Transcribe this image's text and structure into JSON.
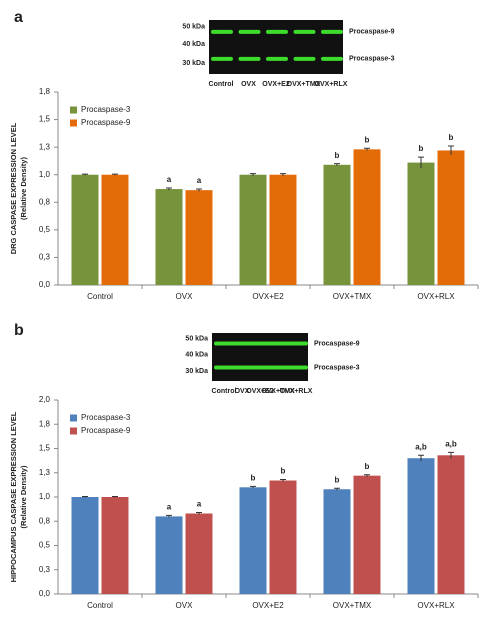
{
  "chart_data": [
    {
      "type": "bar",
      "panel_label": "a",
      "blot": {
        "markers": [
          "50 kDa",
          "40 kDa",
          "30 kDa"
        ],
        "bands": [
          "Procaspase-9",
          "Procaspase-3"
        ],
        "lanes": [
          "Control",
          "OVX",
          "OVX+E2",
          "OVX+TMX",
          "OVX+RLX"
        ]
      },
      "ylabel": [
        "DRG CASPASE EXPRESSION LEVEL",
        "(Relative Density)"
      ],
      "categories": [
        "Control",
        "OVX",
        "OVX+E2",
        "OVX+TMX",
        "OVX+RLX"
      ],
      "series": [
        {
          "name": "Procaspase-3",
          "color": "#77933c",
          "values": [
            1.0,
            0.87,
            1.0,
            1.09,
            1.11
          ],
          "errors": [
            0.005,
            0.01,
            0.01,
            0.01,
            0.05
          ],
          "labels": [
            null,
            "a",
            null,
            "b",
            "b"
          ]
        },
        {
          "name": "Procaspase-9",
          "color": "#e36c09",
          "values": [
            1.0,
            0.86,
            1.0,
            1.23,
            1.22
          ],
          "errors": [
            0.005,
            0.01,
            0.01,
            0.01,
            0.04
          ],
          "labels": [
            null,
            "a",
            null,
            "b",
            "b"
          ]
        }
      ],
      "ylim": [
        0,
        1.75
      ],
      "yticks": [
        {
          "value": 0,
          "label": "0,0"
        },
        {
          "value": 0.25,
          "label": "0,3"
        },
        {
          "value": 0.5,
          "label": "0,5"
        },
        {
          "value": 0.75,
          "label": "0,8"
        },
        {
          "value": 1.0,
          "label": "1,0"
        },
        {
          "value": 1.25,
          "label": "1,3"
        },
        {
          "value": 1.5,
          "label": "1,5"
        },
        {
          "value": 1.75,
          "label": "1,8"
        }
      ],
      "grid": false,
      "legend": "top-left"
    },
    {
      "type": "bar",
      "panel_label": "b",
      "blot": {
        "markers": [
          "50 kDa",
          "40 kDa",
          "30 kDa"
        ],
        "bands": [
          "Procaspase-9",
          "Procaspase-3"
        ],
        "lanes": [
          "Control",
          "OVX",
          "OVX+E2",
          "OVX+TMX",
          "OVX+RLX"
        ]
      },
      "ylabel": [
        "HIPPOCAMPUS CASPASE EXPRESSION LEVEL",
        "(Relative Density)"
      ],
      "categories": [
        "Control",
        "OVX",
        "OVX+E2",
        "OVX+TMX",
        "OVX+RLX"
      ],
      "series": [
        {
          "name": "Procaspase-3",
          "color": "#4f81bd",
          "values": [
            1.0,
            0.8,
            1.1,
            1.08,
            1.4
          ],
          "errors": [
            0.005,
            0.01,
            0.01,
            0.01,
            0.03
          ],
          "labels": [
            null,
            "a",
            "b",
            "b",
            "a,b"
          ]
        },
        {
          "name": "Procaspase-9",
          "color": "#c0504d",
          "values": [
            1.0,
            0.83,
            1.17,
            1.22,
            1.43
          ],
          "errors": [
            0.005,
            0.01,
            0.01,
            0.01,
            0.03
          ],
          "labels": [
            null,
            "a",
            "b",
            "b",
            "a,b"
          ]
        }
      ],
      "ylim": [
        0,
        2.0
      ],
      "yticks": [
        {
          "value": 0,
          "label": "0,0"
        },
        {
          "value": 0.25,
          "label": "0,3"
        },
        {
          "value": 0.5,
          "label": "0,5"
        },
        {
          "value": 0.75,
          "label": "0,8"
        },
        {
          "value": 1.0,
          "label": "1,0"
        },
        {
          "value": 1.25,
          "label": "1,3"
        },
        {
          "value": 1.5,
          "label": "1,5"
        },
        {
          "value": 1.75,
          "label": "1,8"
        },
        {
          "value": 2.0,
          "label": "2,0"
        }
      ],
      "grid": false,
      "legend": "top-left"
    }
  ]
}
